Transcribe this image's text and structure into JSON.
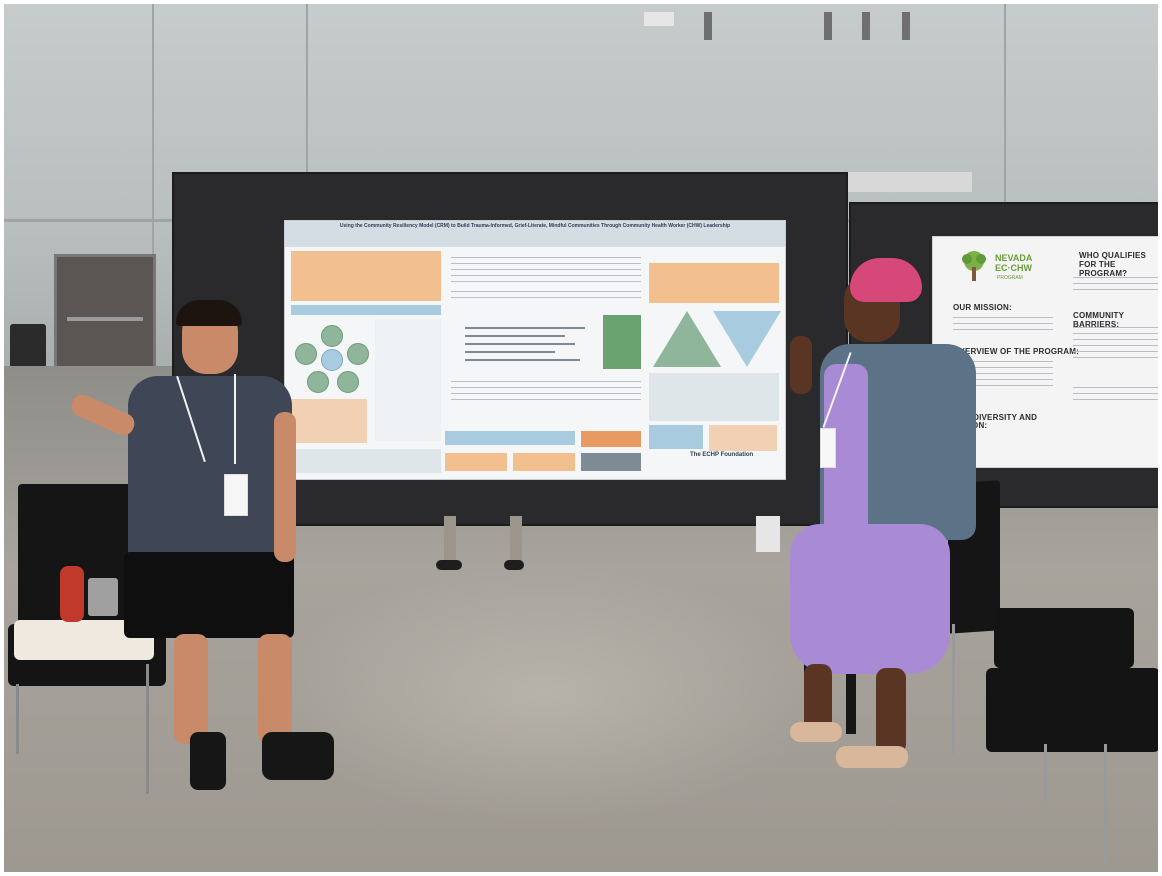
{
  "scene": {
    "description_hidden": false
  },
  "poster_left": {
    "title": "Using the Community Resiliency Model (CRM) to Build Trauma-Informed, Grief-Literate, Mindful Communities Through Community Health Worker (CHW) Leadership",
    "byline": "",
    "logo": "The ECHP Foundation"
  },
  "poster_right": {
    "org_name_line1": "NEVADA",
    "org_name_line2": "EC·CHW",
    "org_name_line3": "PROGRAM",
    "headings": {
      "mission": "OUR MISSION:",
      "overview": "OVERVIEW OF THE PROGRAM:",
      "equity": "ETY, DIVERSITY AND",
      "inclusion": "LUSION:",
      "who_qualifies": "WHO QUALIFIES FOR THE PROGRAM?",
      "barriers": "COMMUNITY BARRIERS:"
    }
  },
  "colors": {
    "board": "#2a2a2c",
    "poster_accent_orange": "#f2c08e",
    "poster_accent_blue": "#a9cbe0",
    "poster_accent_green": "#8fb69a",
    "org_green": "#6b9c3a",
    "dress_purple": "#a98ad4",
    "head_wrap": "#d6477a"
  }
}
